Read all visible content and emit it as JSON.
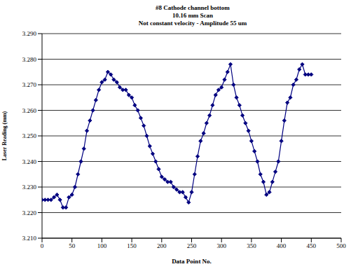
{
  "chart_data": {
    "type": "line",
    "title": [
      "#8 Cathode channel bottom",
      "10.16 mm Scan",
      "Not constant velocity - Amplitude 55 um"
    ],
    "x_label": "Data Point No.",
    "y_label": "Laser Reading (mm)",
    "x": [
      0,
      5,
      10,
      15,
      20,
      25,
      30,
      35,
      40,
      45,
      50,
      55,
      60,
      65,
      70,
      75,
      80,
      85,
      90,
      95,
      100,
      105,
      110,
      115,
      120,
      125,
      130,
      135,
      140,
      145,
      150,
      155,
      160,
      165,
      170,
      175,
      180,
      185,
      190,
      195,
      200,
      205,
      210,
      215,
      220,
      225,
      230,
      235,
      240,
      245,
      250,
      255,
      260,
      265,
      270,
      275,
      280,
      285,
      290,
      295,
      300,
      305,
      310,
      315,
      320,
      325,
      330,
      335,
      340,
      345,
      350,
      355,
      360,
      365,
      370,
      375,
      380,
      385,
      390,
      395,
      400,
      405,
      410,
      415,
      420,
      425,
      430,
      435,
      440,
      445,
      450
    ],
    "series": [
      {
        "name": "Laser Reading",
        "color": "#000080",
        "marker": "diamond",
        "values": [
          3.225,
          3.225,
          3.225,
          3.225,
          3.226,
          3.227,
          3.225,
          3.222,
          3.222,
          3.226,
          3.227,
          3.23,
          3.235,
          3.24,
          3.245,
          3.252,
          3.256,
          3.26,
          3.264,
          3.268,
          3.271,
          3.272,
          3.275,
          3.274,
          3.272,
          3.271,
          3.269,
          3.268,
          3.268,
          3.266,
          3.265,
          3.262,
          3.26,
          3.257,
          3.254,
          3.25,
          3.246,
          3.243,
          3.24,
          3.237,
          3.234,
          3.233,
          3.232,
          3.232,
          3.23,
          3.229,
          3.228,
          3.228,
          3.226,
          3.224,
          3.228,
          3.235,
          3.242,
          3.248,
          3.251,
          3.255,
          3.258,
          3.262,
          3.266,
          3.268,
          3.269,
          3.272,
          3.275,
          3.278,
          3.27,
          3.265,
          3.262,
          3.258,
          3.255,
          3.252,
          3.248,
          3.244,
          3.24,
          3.235,
          3.232,
          3.227,
          3.228,
          3.232,
          3.236,
          3.24,
          3.248,
          3.256,
          3.263,
          3.265,
          3.27,
          3.272,
          3.276,
          3.278,
          3.274,
          3.274,
          3.274
        ]
      }
    ],
    "xlim": [
      0,
      500
    ],
    "xticks": [
      0,
      50,
      100,
      150,
      200,
      250,
      300,
      350,
      400,
      450,
      500
    ],
    "ylim": [
      3.21,
      3.29
    ],
    "yticks": [
      {
        "value": 3.21,
        "label": "3.210"
      },
      {
        "value": 3.22,
        "label": "3.220"
      },
      {
        "value": 3.23,
        "label": "3.230"
      },
      {
        "value": 3.24,
        "label": "3.240"
      },
      {
        "value": 3.25,
        "label": "3.250"
      },
      {
        "value": 3.26,
        "label": "3.260"
      },
      {
        "value": 3.27,
        "label": "3.270"
      },
      {
        "value": 3.28,
        "label": "3.280"
      },
      {
        "value": 3.29,
        "label": "3.290"
      }
    ],
    "grid": true
  }
}
